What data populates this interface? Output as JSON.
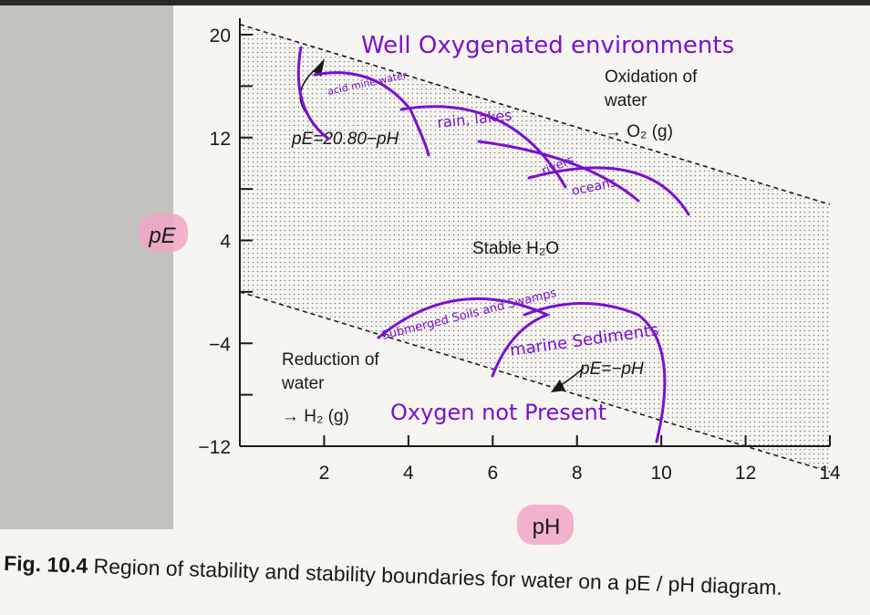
{
  "chart_data": {
    "type": "line",
    "title": "",
    "xlabel": "pH",
    "ylabel": "pE",
    "x_ticks": [
      2,
      4,
      6,
      8,
      10,
      12,
      14
    ],
    "y_ticks": [
      -12,
      -4,
      4,
      12,
      20
    ],
    "xlim": [
      0,
      14
    ],
    "ylim": [
      -12,
      20
    ],
    "series": [
      {
        "name": "pE = 20.80 - pH",
        "x": [
          0,
          14
        ],
        "y": [
          20.8,
          6.8
        ]
      },
      {
        "name": "pE = -pH",
        "x": [
          0,
          14
        ],
        "y": [
          0,
          -14
        ]
      }
    ],
    "regions": [
      {
        "name": "oxidation",
        "label_line1": "Oxidation of",
        "label_line2": "water",
        "label_line3": "→ O₂ (g)"
      },
      {
        "name": "stable",
        "label": "Stable H₂O"
      },
      {
        "name": "reduction",
        "label_line1": "Reduction of",
        "label_line2": "water",
        "label_line3": "→ H₂ (g)"
      }
    ],
    "annotations": {
      "upper_line_label": "pE=20.80−pH",
      "lower_line_label": "pE=−pH",
      "handwritten_top": "Well Oxygenated environments",
      "acid_mine_water": "acid mine water",
      "rain_lakes": "rain, lakes",
      "rivers": "rivers",
      "oceans": "oceans",
      "submerged_soils": "Submerged Soils and Swamps",
      "marine_sediments": "marine Sediments",
      "oxygen_not_present": "Oxygen not Present"
    }
  },
  "caption": {
    "label": "Fig. 10.4",
    "text": "Region of stability and stability boundaries for water on a pE / pH diagram."
  },
  "colors": {
    "ink": "#1a1a1a",
    "paper": "#f6f5f1",
    "highlight": "#f0a6c4",
    "pen": "#7b10cf"
  }
}
